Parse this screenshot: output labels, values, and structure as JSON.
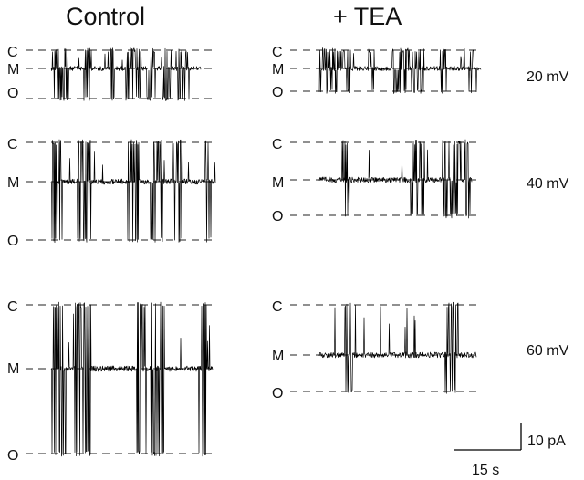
{
  "headers": {
    "control": "Control",
    "tea": "+ TEA"
  },
  "levels": {
    "closed": "C",
    "mid": "M",
    "open": "O"
  },
  "voltages": [
    "20 mV",
    "40 mV",
    "60 mV"
  ],
  "scale_bar": {
    "current": "10 pA",
    "time": "15 s"
  },
  "style": {
    "trace_color": "#000000",
    "dash_color": "#222222"
  }
}
